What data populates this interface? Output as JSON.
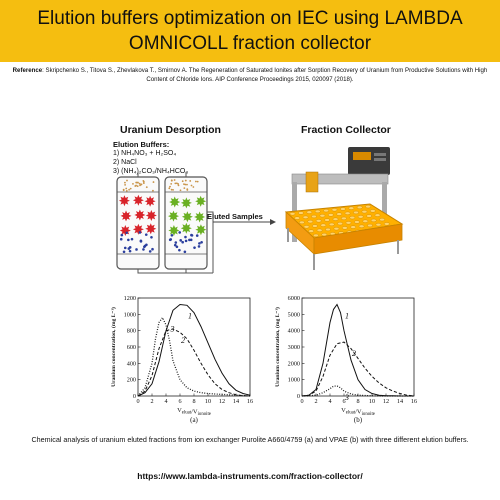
{
  "banner": {
    "title": "Elution buffers optimization on IEC using LAMBDA OMNICOLL fraction collector"
  },
  "reference": {
    "label": "Reference",
    "text": ": Skripchenko S., Titova S., Zhevlakova T., Smirnov A. The Regeneration of Saturated Ionites after Sorption Recovery of Uranium from Productive Solutions with High Content of Chloride Ions. AIP Conference Proceedings 2015, 020097 (2018)."
  },
  "left_section": {
    "title": "Uranium Desorption",
    "buffers_title": "Elution Buffers:",
    "buffers": [
      "1) NH₄NO₃ + H₂SO₄",
      "2) NaCl",
      "3) (NH₄)₂CO₃/NH₄HCO₃"
    ],
    "eluted_label": "Eluted Samples"
  },
  "right_section": {
    "title": "Fraction Collector"
  },
  "colors": {
    "banner": "#f5be10",
    "red_resin": "#d8232a",
    "green_resin": "#6ab023",
    "blue_dots": "#2b3f9e",
    "orange_dots": "#c9954a",
    "collector_orange": "#f39c12"
  },
  "chart_data": [
    {
      "type": "line",
      "panel_label": "(a)",
      "ylabel": "Uranium concentration, (mg L⁻¹)",
      "xlabel": "V_eluat/V_ionoite",
      "xlim": [
        0,
        16
      ],
      "ylim": [
        0,
        1200
      ],
      "xticks": [
        0,
        2,
        4,
        6,
        8,
        10,
        12,
        14,
        16
      ],
      "yticks": [
        0,
        200,
        400,
        600,
        800,
        1000,
        1200
      ],
      "series": [
        {
          "name": "1",
          "style": "solid",
          "x": [
            0,
            1,
            2,
            3,
            4,
            5,
            6,
            7,
            8,
            9,
            10,
            11,
            12,
            13,
            14,
            15,
            16
          ],
          "y": [
            0,
            40,
            150,
            420,
            800,
            1050,
            1120,
            1110,
            1020,
            850,
            650,
            450,
            280,
            150,
            70,
            30,
            10
          ]
        },
        {
          "name": "2",
          "style": "dashed",
          "x": [
            0,
            1,
            2,
            3,
            4,
            5,
            6,
            7,
            8,
            9,
            10,
            11,
            12,
            13,
            14,
            15,
            16
          ],
          "y": [
            0,
            60,
            250,
            580,
            800,
            820,
            780,
            700,
            560,
            400,
            260,
            150,
            80,
            40,
            15,
            5,
            0
          ]
        },
        {
          "name": "3",
          "style": "dotted",
          "x": [
            0,
            1,
            2,
            2.5,
            3,
            3.5,
            4,
            4.5,
            5,
            6,
            7,
            8,
            9,
            10,
            11,
            12,
            13,
            14,
            15,
            16
          ],
          "y": [
            0,
            100,
            400,
            700,
            900,
            960,
            870,
            680,
            430,
            200,
            100,
            60,
            40,
            30,
            25,
            20,
            15,
            10,
            5,
            0
          ]
        }
      ]
    },
    {
      "type": "line",
      "panel_label": "(b)",
      "ylabel": "Uranium concentration, (mg L⁻¹)",
      "xlabel": "V_eluat/V_ionoite",
      "xlim": [
        0,
        16
      ],
      "ylim": [
        0,
        6000
      ],
      "xticks": [
        0,
        2,
        4,
        6,
        8,
        10,
        12,
        14,
        16
      ],
      "yticks": [
        0,
        1000,
        2000,
        3000,
        4000,
        5000,
        6000
      ],
      "series": [
        {
          "name": "1",
          "style": "solid",
          "x": [
            0,
            1,
            2,
            3,
            4,
            4.5,
            5,
            5.5,
            6,
            7,
            8,
            9,
            10,
            11,
            12,
            13,
            14,
            15,
            16
          ],
          "y": [
            0,
            50,
            400,
            2000,
            4500,
            5300,
            5600,
            5100,
            4000,
            2200,
            1000,
            400,
            150,
            50,
            20,
            10,
            0,
            0,
            0
          ]
        },
        {
          "name": "2",
          "style": "dashed",
          "x": [
            0,
            1,
            2,
            3,
            4,
            5,
            6,
            7,
            8,
            9,
            10,
            11,
            12,
            13,
            14,
            15,
            16
          ],
          "y": [
            0,
            50,
            300,
            1200,
            2500,
            3200,
            3300,
            2900,
            2300,
            1700,
            1200,
            800,
            500,
            300,
            150,
            50,
            0
          ]
        },
        {
          "name": "3",
          "style": "dotted",
          "x": [
            0,
            1,
            2,
            3,
            4,
            4.5,
            5,
            5.5,
            6,
            7,
            8,
            10,
            12,
            14,
            16
          ],
          "y": [
            0,
            10,
            50,
            200,
            450,
            600,
            620,
            500,
            300,
            120,
            50,
            10,
            0,
            0,
            0
          ]
        }
      ]
    }
  ],
  "caption": "Chemical analysis of uranium eluted fractions from ion exchanger Purolite A660/4759 (a) and VPAE (b) with three different elution buffers.",
  "footer": {
    "url": "https://www.lambda-instruments.com/fraction-collector/"
  }
}
